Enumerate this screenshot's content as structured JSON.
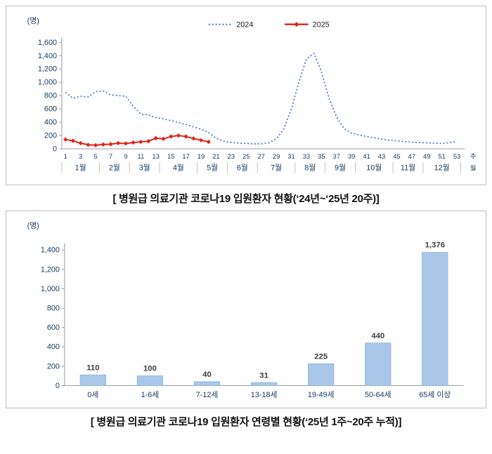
{
  "captions": {
    "weekly": "[ 병원급 의료기관 코로나19 입원환자 현황(‘24년~‘25년 20주)]",
    "age": "[ 병원급 의료기관 코로나19 입원환자 연령별 현황(‘25년 1주~20주 누적)]"
  },
  "colors": {
    "axis_text": "#17375e",
    "axis_line": "#9a9a9a",
    "line_2024": "#4472c4",
    "line_2025": "#e0231a",
    "bar_fill": "#a9c7e9",
    "bar_stroke": "#8fb2da"
  },
  "chart_data": [
    {
      "type": "line",
      "unit_label": "(명)",
      "x_axis_unit_week": "주",
      "x_axis_unit_month": "월",
      "ylim": [
        0,
        1600
      ],
      "ytick_step": 200,
      "weeks": 53,
      "week_tick_labels": [
        1,
        3,
        5,
        7,
        9,
        11,
        13,
        15,
        17,
        19,
        21,
        23,
        25,
        27,
        29,
        31,
        33,
        35,
        37,
        39,
        41,
        43,
        45,
        47,
        49,
        51,
        53
      ],
      "months": [
        "1월",
        "2월",
        "3월",
        "4월",
        "5월",
        "6월",
        "7월",
        "8월",
        "9월",
        "10월",
        "11월",
        "12월"
      ],
      "month_centers": [
        3,
        7.5,
        11.5,
        16,
        20.5,
        24.5,
        29,
        33.5,
        37.5,
        42,
        46.5,
        51
      ],
      "month_boundaries": [
        0,
        5,
        9,
        13,
        18,
        22,
        26,
        31,
        35,
        39,
        44,
        48,
        53
      ],
      "legend_position": "top-center",
      "grid": false,
      "series": [
        {
          "name": "2024",
          "color": "#4472c4",
          "style": "dotted",
          "x_start": 1,
          "values": [
            850,
            760,
            790,
            780,
            860,
            870,
            810,
            800,
            790,
            640,
            520,
            510,
            470,
            450,
            425,
            395,
            365,
            330,
            295,
            245,
            160,
            115,
            95,
            85,
            80,
            75,
            75,
            90,
            150,
            300,
            600,
            1000,
            1350,
            1435,
            1160,
            760,
            480,
            305,
            235,
            210,
            185,
            165,
            145,
            130,
            120,
            110,
            100,
            95,
            90,
            85,
            80,
            95,
            110
          ]
        },
        {
          "name": "2025",
          "color": "#e0231a",
          "style": "solid-diamond",
          "x_start": 1,
          "values": [
            140,
            120,
            85,
            60,
            55,
            65,
            70,
            85,
            80,
            95,
            105,
            115,
            160,
            150,
            185,
            200,
            185,
            155,
            130,
            105
          ]
        }
      ]
    },
    {
      "type": "bar",
      "unit_label": "(명)",
      "categories": [
        "0세",
        "1-6세",
        "7-12세",
        "13-18세",
        "19-49세",
        "50-64세",
        "65세 이상"
      ],
      "values": [
        110,
        100,
        40,
        31,
        225,
        440,
        1376
      ],
      "value_labels": [
        "110",
        "100",
        "40",
        "31",
        "225",
        "440",
        "1,376"
      ],
      "ylim": [
        0,
        1400
      ],
      "ytick_step": 200,
      "grid": false,
      "legend": "none"
    }
  ]
}
